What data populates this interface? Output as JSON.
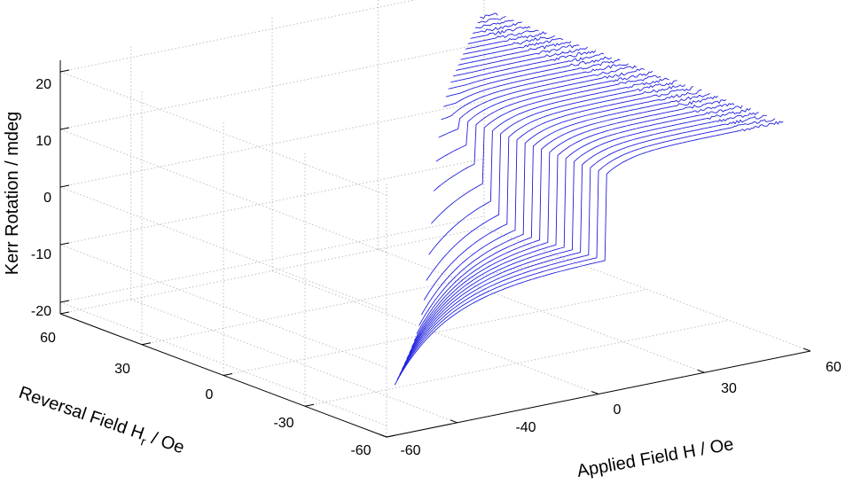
{
  "chart_data": {
    "type": "line",
    "projection": "3d",
    "title": "",
    "xlabel": "Applied Field H / Oe",
    "ylabel_main": "Reversal Field H",
    "ylabel_sub": "r",
    "ylabel_tail": " / Oe",
    "zlabel": "Kerr Rotation / mdeg",
    "xlim": [
      -60,
      60
    ],
    "ylim": [
      -60,
      60
    ],
    "zlim": [
      -22,
      22
    ],
    "x_ticks": [
      "-60",
      "-40",
      "0",
      "30",
      "60"
    ],
    "y_ticks": [
      "-60",
      "-30",
      "0",
      "30",
      "60"
    ],
    "z_ticks": [
      "-20",
      "-10",
      "0",
      "10",
      "20"
    ],
    "grid": true,
    "line_color": "#1f1fe0",
    "curve_family": {
      "description_of_family": "first-order reversal curves",
      "reversal_fields": [
        -50,
        -47,
        -44,
        -41,
        -38,
        -35,
        -32,
        -29,
        -26,
        -23,
        -20,
        -17,
        -14,
        -11,
        -8,
        -5,
        -2,
        1,
        4,
        7,
        10,
        13,
        16,
        19,
        22,
        25,
        28,
        31,
        34,
        37,
        40,
        43,
        46,
        49,
        52,
        55
      ],
      "applied_field_max": 60,
      "saturation_value": 16,
      "coercive_field_descending": -4,
      "switching_field_ascending": 10
    }
  }
}
